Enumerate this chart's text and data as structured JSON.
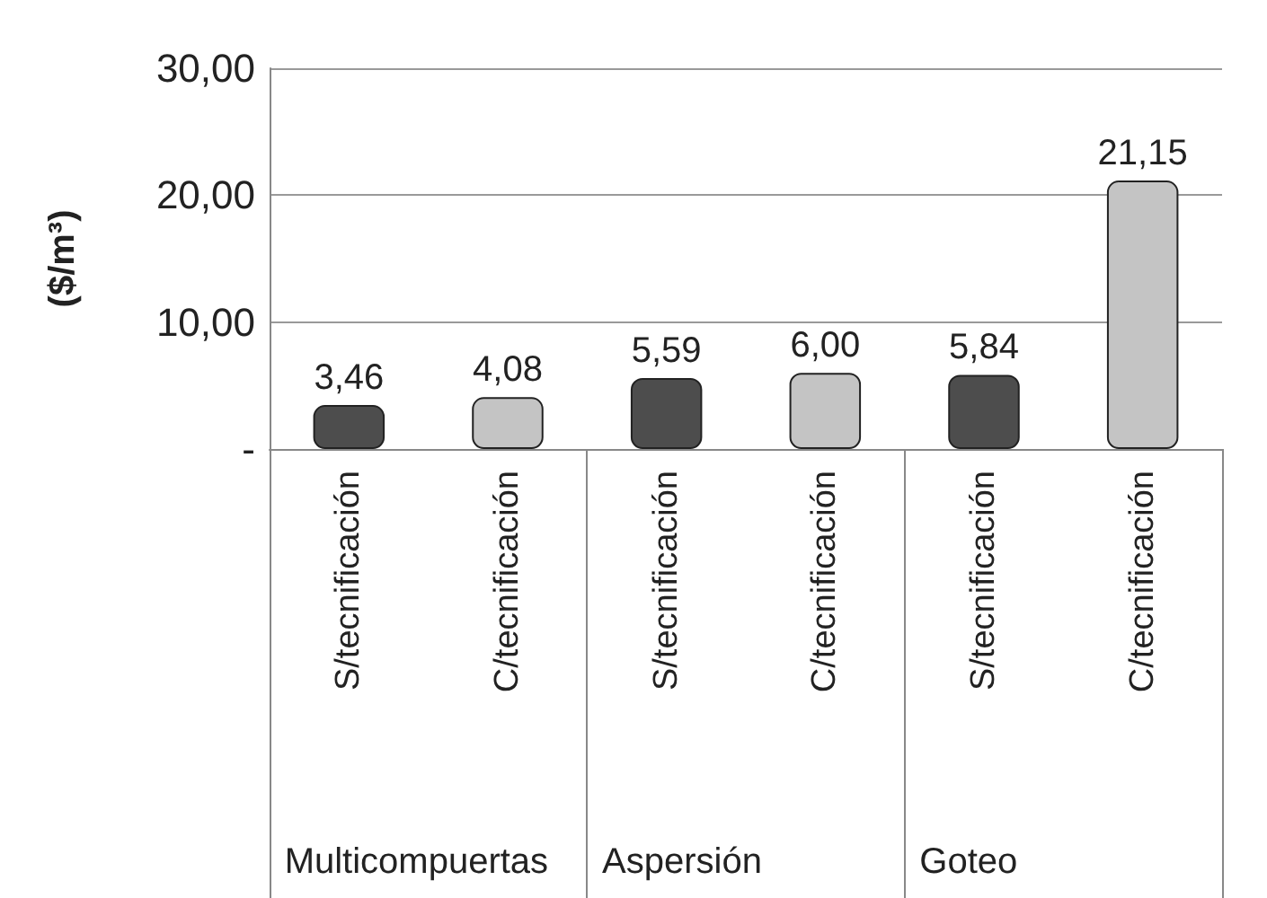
{
  "chart_data": {
    "type": "bar",
    "ylabel": "($/m³)",
    "categories": [
      "S/tecnificación",
      "C/tecnificación",
      "S/tecnificación",
      "C/tecnificación",
      "S/tecnificación",
      "C/tecnificación"
    ],
    "values": [
      3.46,
      4.08,
      5.59,
      6.0,
      5.84,
      21.15
    ],
    "colors": [
      "#4d4d4d",
      "#c4c4c4",
      "#4d4d4d",
      "#c4c4c4",
      "#4d4d4d",
      "#c4c4c4"
    ],
    "value_labels": [
      "3,46",
      "4,08",
      "5,59",
      "6,00",
      "5,84",
      "21,15"
    ],
    "ylim": [
      0,
      30
    ],
    "yticks": [
      {
        "value": 0,
        "label": "-"
      },
      {
        "value": 10,
        "label": "10,00"
      },
      {
        "value": 20,
        "label": "20,00"
      },
      {
        "value": 30,
        "label": "30,00"
      }
    ],
    "grid": "y",
    "annotations": [
      "Multicompuertas",
      "Aspersión",
      "Goteo"
    ]
  }
}
